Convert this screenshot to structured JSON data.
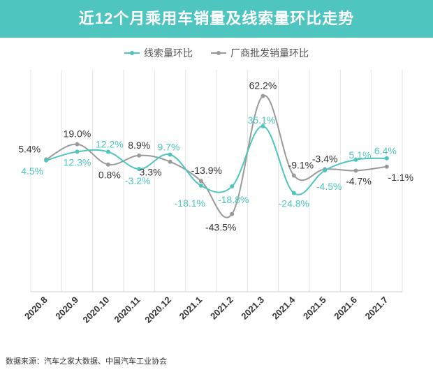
{
  "chart_data": {
    "type": "line",
    "title": "近12个月乘用车销量及线索量环比走势",
    "categories": [
      "2020.8",
      "2020.9",
      "2020.10",
      "2020.11",
      "2020.12",
      "2021.1",
      "2021.2",
      "2021.3",
      "2021.4",
      "2021.5",
      "2021.6",
      "2021.7"
    ],
    "series": [
      {
        "name": "线索量环比",
        "color": "#4ec6bf",
        "values": [
          4.5,
          12.3,
          12.2,
          -3.2,
          9.7,
          -18.1,
          -18.8,
          35.1,
          -24.8,
          -4.5,
          5.1,
          6.4
        ],
        "labels": [
          "4.5%",
          "12.3%",
          "12.2%",
          "-3.2%",
          "9.7%",
          "-18.1%",
          "-18.8%",
          "35.1%",
          "-24.8%",
          "-4.5%",
          "5.1%",
          "6.4%"
        ]
      },
      {
        "name": "厂商批发销量环比",
        "color": "#9a9a9a",
        "values": [
          5.4,
          19.0,
          0.8,
          8.9,
          3.3,
          -13.9,
          -43.5,
          62.2,
          -9.1,
          -3.4,
          -4.7,
          -1.1
        ],
        "labels": [
          "5.4%",
          "19.0%",
          "0.8%",
          "8.9%",
          "3.3%",
          "-13.9%",
          "-43.5%",
          "62.2%",
          "-9.1%",
          "-3.4%",
          "-4.7%",
          "-1.1%"
        ]
      }
    ],
    "legend_position": "top-center",
    "grid": "vertical"
  },
  "source_text": "数据来源：汽车之家大数据、中国汽车工业协会"
}
